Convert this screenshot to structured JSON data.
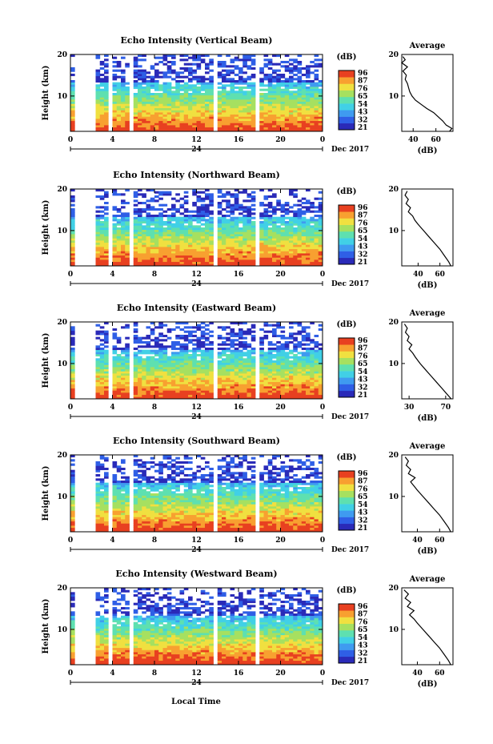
{
  "figure": {
    "x_axis_label": "Local Time",
    "date_label": "Dec 2017",
    "cbar_unit": "(dB)",
    "avg_title": "Average",
    "avg_unit": "(dB)"
  },
  "chart_data": [
    {
      "type": "heatmap",
      "title": "Echo Intensity (Vertical Beam)",
      "ylabel": "Height (km)",
      "xlabel": "Local Time",
      "x_ticks": [
        "0",
        "4",
        "8",
        "12",
        "16",
        "20",
        "0"
      ],
      "xlim": [
        0,
        24
      ],
      "y_ticks": [
        "20",
        "10"
      ],
      "ylim": [
        1.5,
        20
      ],
      "day_label": "24",
      "date_label": "Dec 2017",
      "colorbar": {
        "unit": "(dB)",
        "ticks": [
          "96",
          "87",
          "76",
          "65",
          "54",
          "43",
          "32",
          "21"
        ]
      },
      "data_gaps_hours": [
        [
          0.6,
          2.6
        ],
        [
          3.8,
          4.1
        ],
        [
          5.6,
          5.9
        ],
        [
          13.6,
          14.0
        ],
        [
          15.1,
          15.4
        ],
        [
          17.7,
          17.9
        ]
      ],
      "average_profile": {
        "title": "Average",
        "xlabel": "(dB)",
        "x_ticks": [
          "40",
          "60"
        ],
        "xlim": [
          30,
          75
        ],
        "y_ticks": [
          "20",
          "10"
        ],
        "ylim": [
          1.5,
          20
        ],
        "points": [
          [
            72,
            1.5
          ],
          [
            74,
            2.2
          ],
          [
            69,
            3.0
          ],
          [
            66,
            4.0
          ],
          [
            62,
            5.0
          ],
          [
            58,
            6.0
          ],
          [
            52,
            7.0
          ],
          [
            47,
            8.0
          ],
          [
            42,
            9.0
          ],
          [
            39,
            10.0
          ],
          [
            37,
            11.0
          ],
          [
            36,
            12.0
          ],
          [
            35,
            13.0
          ],
          [
            33,
            14.0
          ],
          [
            34,
            15.0
          ],
          [
            31,
            16.0
          ],
          [
            35,
            17.0
          ],
          [
            30,
            18.0
          ],
          [
            33,
            18.7
          ],
          [
            31,
            19.5
          ]
        ]
      }
    },
    {
      "type": "heatmap",
      "title": "Echo Intensity (Northward Beam)",
      "ylabel": "Height (km)",
      "xlabel": "Local Time",
      "x_ticks": [
        "0",
        "4",
        "8",
        "12",
        "16",
        "20",
        "0"
      ],
      "xlim": [
        0,
        24
      ],
      "y_ticks": [
        "20",
        "10"
      ],
      "ylim": [
        1.5,
        20
      ],
      "day_label": "24",
      "date_label": "Dec 2017",
      "colorbar": {
        "unit": "(dB)",
        "ticks": [
          "96",
          "87",
          "76",
          "65",
          "54",
          "43",
          "32",
          "21"
        ]
      },
      "data_gaps_hours": [
        [
          0.6,
          2.6
        ],
        [
          3.8,
          4.1
        ],
        [
          5.6,
          5.9
        ],
        [
          13.6,
          14.0
        ],
        [
          15.1,
          15.4
        ],
        [
          17.7,
          17.9
        ]
      ],
      "average_profile": {
        "title": "",
        "xlabel": "(dB)",
        "x_ticks": [
          "40",
          "60"
        ],
        "xlim": [
          25,
          72
        ],
        "y_ticks": [
          "20",
          "10"
        ],
        "ylim": [
          1.5,
          20
        ],
        "points": [
          [
            70,
            1.5
          ],
          [
            68,
            2.5
          ],
          [
            64,
            4.0
          ],
          [
            60,
            5.5
          ],
          [
            55,
            7.0
          ],
          [
            50,
            8.5
          ],
          [
            45,
            10.0
          ],
          [
            40,
            11.5
          ],
          [
            37,
            12.5
          ],
          [
            35,
            13.5
          ],
          [
            31,
            14.5
          ],
          [
            33,
            15.5
          ],
          [
            29,
            16.5
          ],
          [
            31,
            17.5
          ],
          [
            28,
            18.5
          ],
          [
            30,
            19.5
          ]
        ]
      }
    },
    {
      "type": "heatmap",
      "title": "Echo Intensity (Eastward Beam)",
      "ylabel": "Height (km)",
      "xlabel": "Local Time",
      "x_ticks": [
        "0",
        "4",
        "8",
        "12",
        "16",
        "20",
        "0"
      ],
      "xlim": [
        0,
        24
      ],
      "y_ticks": [
        "20",
        "10"
      ],
      "ylim": [
        1.5,
        20
      ],
      "day_label": "24",
      "date_label": "Dec 2017",
      "colorbar": {
        "unit": "(dB)",
        "ticks": [
          "96",
          "87",
          "76",
          "65",
          "54",
          "43",
          "32",
          "21"
        ]
      },
      "data_gaps_hours": [
        [
          0.6,
          2.6
        ],
        [
          3.8,
          4.1
        ],
        [
          5.6,
          5.9
        ],
        [
          13.6,
          14.0
        ],
        [
          15.1,
          15.4
        ],
        [
          17.7,
          17.9
        ]
      ],
      "average_profile": {
        "title": "Average",
        "xlabel": "(dB)",
        "x_ticks": [
          "30",
          "70"
        ],
        "xlim": [
          22,
          78
        ],
        "y_ticks": [
          "20",
          "10"
        ],
        "ylim": [
          1.5,
          20
        ],
        "points": [
          [
            76,
            1.5
          ],
          [
            72,
            2.5
          ],
          [
            66,
            4.0
          ],
          [
            60,
            5.5
          ],
          [
            54,
            7.0
          ],
          [
            48,
            8.5
          ],
          [
            42,
            10.0
          ],
          [
            37,
            11.5
          ],
          [
            34,
            12.5
          ],
          [
            30,
            13.5
          ],
          [
            33,
            14.5
          ],
          [
            28,
            15.5
          ],
          [
            30,
            16.5
          ],
          [
            26,
            17.5
          ],
          [
            28,
            18.5
          ],
          [
            25,
            19.5
          ]
        ]
      }
    },
    {
      "type": "heatmap",
      "title": "Echo Intensity (Southward Beam)",
      "ylabel": "Height (km)",
      "xlabel": "Local Time",
      "x_ticks": [
        "0",
        "4",
        "8",
        "12",
        "16",
        "20",
        "0"
      ],
      "xlim": [
        0,
        24
      ],
      "y_ticks": [
        "20",
        "10"
      ],
      "ylim": [
        1.5,
        20
      ],
      "day_label": "24",
      "date_label": "Dec 2017",
      "colorbar": {
        "unit": "(dB)",
        "ticks": [
          "96",
          "87",
          "76",
          "65",
          "54",
          "43",
          "32",
          "21"
        ]
      },
      "data_gaps_hours": [
        [
          0.6,
          2.6
        ],
        [
          3.8,
          4.1
        ],
        [
          5.6,
          5.9
        ],
        [
          13.6,
          14.0
        ],
        [
          15.1,
          15.4
        ],
        [
          17.7,
          17.9
        ]
      ],
      "average_profile": {
        "title": "Average",
        "xlabel": "(dB)",
        "x_ticks": [
          "40",
          "60"
        ],
        "xlim": [
          26,
          72
        ],
        "y_ticks": [
          "20",
          "10"
        ],
        "ylim": [
          1.5,
          20
        ],
        "points": [
          [
            70,
            1.5
          ],
          [
            68,
            2.5
          ],
          [
            64,
            4.0
          ],
          [
            60,
            5.5
          ],
          [
            55,
            7.0
          ],
          [
            50,
            8.5
          ],
          [
            45,
            10.0
          ],
          [
            40,
            11.5
          ],
          [
            37,
            12.5
          ],
          [
            34,
            13.5
          ],
          [
            38,
            14.5
          ],
          [
            32,
            15.5
          ],
          [
            34,
            16.5
          ],
          [
            30,
            17.5
          ],
          [
            32,
            18.5
          ],
          [
            29,
            19.5
          ]
        ]
      }
    },
    {
      "type": "heatmap",
      "title": "Echo Intensity (Westward Beam)",
      "ylabel": "Height (km)",
      "xlabel": "Local Time",
      "x_ticks": [
        "0",
        "4",
        "8",
        "12",
        "16",
        "20",
        "0"
      ],
      "xlim": [
        0,
        24
      ],
      "y_ticks": [
        "20",
        "10"
      ],
      "ylim": [
        1.5,
        20
      ],
      "day_label": "24",
      "date_label": "Dec 2017",
      "colorbar": {
        "unit": "(dB)",
        "ticks": [
          "96",
          "87",
          "76",
          "65",
          "54",
          "43",
          "32",
          "21"
        ]
      },
      "data_gaps_hours": [
        [
          0.6,
          2.6
        ],
        [
          3.8,
          4.1
        ],
        [
          5.6,
          5.9
        ],
        [
          13.6,
          14.0
        ],
        [
          15.1,
          15.4
        ],
        [
          17.7,
          17.9
        ]
      ],
      "average_profile": {
        "title": "Average",
        "xlabel": "(dB)",
        "x_ticks": [
          "40",
          "60"
        ],
        "xlim": [
          26,
          72
        ],
        "y_ticks": [
          "20",
          "10"
        ],
        "ylim": [
          1.5,
          20
        ],
        "points": [
          [
            70,
            1.5
          ],
          [
            68,
            2.5
          ],
          [
            64,
            4.0
          ],
          [
            60,
            5.5
          ],
          [
            55,
            7.0
          ],
          [
            50,
            8.5
          ],
          [
            45,
            10.0
          ],
          [
            40,
            11.5
          ],
          [
            37,
            12.5
          ],
          [
            33,
            13.5
          ],
          [
            37,
            14.5
          ],
          [
            31,
            15.5
          ],
          [
            34,
            16.5
          ],
          [
            29,
            17.5
          ],
          [
            32,
            18.5
          ],
          [
            28,
            19.5
          ]
        ]
      }
    }
  ]
}
